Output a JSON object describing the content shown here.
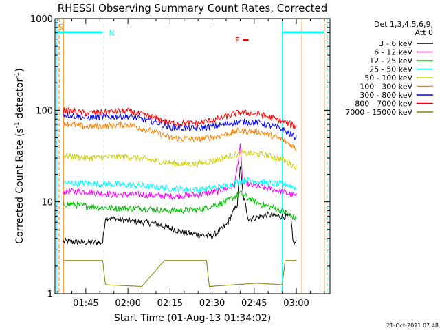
{
  "chart_data": {
    "type": "line",
    "title": "RHESSI Observing Summary Count Rates, Corrected",
    "xlabel": "Start Time (01-Aug-13 01:34:02)",
    "ylabel": "Corrected Count Rate (s⁻¹ detector⁻¹)",
    "ylabel_parts": {
      "a": "Corrected Count Rate (s",
      "b": "-1",
      "c": " detector",
      "d": "-1",
      "e": ")"
    },
    "xlim": [
      "01:34",
      "03:12"
    ],
    "ylim": [
      1,
      1000
    ],
    "yscale": "log",
    "xticks": [
      "01:45",
      "02:00",
      "02:15",
      "02:30",
      "02:45",
      "03:00"
    ],
    "yticks": [
      "1",
      "10",
      "100",
      "1000"
    ],
    "legend_position": "top-right",
    "legend_header": [
      "Det 1,3,4,5,6,9,",
      "Att 0"
    ],
    "series": [
      {
        "name": "3 - 6 keV",
        "color": "#000000",
        "points": [
          [
            "01:37",
            3.7
          ],
          [
            "01:45",
            3.6
          ],
          [
            "01:51",
            3.6
          ],
          [
            "01:52",
            6.8
          ],
          [
            "02:00",
            6.2
          ],
          [
            "02:10",
            5.8
          ],
          [
            "02:20",
            4.6
          ],
          [
            "02:30",
            4.2
          ],
          [
            "02:35",
            5.5
          ],
          [
            "02:39",
            9.5
          ],
          [
            "02:40",
            25
          ],
          [
            "02:41",
            12
          ],
          [
            "02:43",
            6.5
          ],
          [
            "02:50",
            7.2
          ],
          [
            "02:58",
            6.8
          ],
          [
            "02:59",
            3.5
          ],
          [
            "03:00",
            3.6
          ]
        ]
      },
      {
        "name": "6 - 12 keV",
        "color": "#ff00ff",
        "points": [
          [
            "01:37",
            13
          ],
          [
            "01:45",
            13
          ],
          [
            "01:55",
            12
          ],
          [
            "02:05",
            12
          ],
          [
            "02:15",
            11.5
          ],
          [
            "02:25",
            12
          ],
          [
            "02:32",
            13
          ],
          [
            "02:38",
            15
          ],
          [
            "02:40",
            40
          ],
          [
            "02:41",
            16
          ],
          [
            "02:45",
            15
          ],
          [
            "02:55",
            13
          ],
          [
            "03:00",
            11.5
          ]
        ]
      },
      {
        "name": "12 - 25 keV",
        "color": "#00c000",
        "points": [
          [
            "01:37",
            9.5
          ],
          [
            "01:45",
            9
          ],
          [
            "01:55",
            8.5
          ],
          [
            "02:05",
            8.5
          ],
          [
            "02:15",
            8
          ],
          [
            "02:25",
            8.2
          ],
          [
            "02:35",
            10
          ],
          [
            "02:40",
            12.5
          ],
          [
            "02:45",
            10
          ],
          [
            "02:55",
            8
          ],
          [
            "03:00",
            6.5
          ]
        ]
      },
      {
        "name": "25 - 50 keV",
        "color": "#00ffff",
        "points": [
          [
            "01:37",
            16
          ],
          [
            "01:45",
            16
          ],
          [
            "01:55",
            15.5
          ],
          [
            "02:05",
            15
          ],
          [
            "02:15",
            14
          ],
          [
            "02:25",
            13.5
          ],
          [
            "02:35",
            15
          ],
          [
            "02:42",
            17.5
          ],
          [
            "02:50",
            16
          ],
          [
            "02:57",
            15.5
          ],
          [
            "03:00",
            14
          ]
        ]
      },
      {
        "name": "50 - 100 keV",
        "color": "#d0d000",
        "points": [
          [
            "01:37",
            32
          ],
          [
            "01:45",
            30
          ],
          [
            "01:55",
            31
          ],
          [
            "02:00",
            31
          ],
          [
            "02:10",
            28
          ],
          [
            "02:18",
            26
          ],
          [
            "02:25",
            26
          ],
          [
            "02:32",
            29
          ],
          [
            "02:40",
            34
          ],
          [
            "02:48",
            33
          ],
          [
            "02:55",
            29
          ],
          [
            "03:00",
            24
          ]
        ]
      },
      {
        "name": "100 - 300 keV",
        "color": "#ff8000",
        "points": [
          [
            "01:37",
            72
          ],
          [
            "01:45",
            66
          ],
          [
            "01:55",
            68
          ],
          [
            "02:00",
            70
          ],
          [
            "02:10",
            57
          ],
          [
            "02:15",
            50
          ],
          [
            "02:25",
            48
          ],
          [
            "02:32",
            52
          ],
          [
            "02:40",
            60
          ],
          [
            "02:47",
            58
          ],
          [
            "02:55",
            48
          ],
          [
            "03:00",
            38
          ]
        ]
      },
      {
        "name": "300 - 800 keV",
        "color": "#0000ff",
        "points": [
          [
            "01:37",
            90
          ],
          [
            "01:45",
            83
          ],
          [
            "01:55",
            85
          ],
          [
            "02:00",
            86
          ],
          [
            "02:10",
            74
          ],
          [
            "02:15",
            65
          ],
          [
            "02:25",
            63
          ],
          [
            "02:32",
            68
          ],
          [
            "02:40",
            75
          ],
          [
            "02:47",
            73
          ],
          [
            "02:55",
            62
          ],
          [
            "03:00",
            50
          ]
        ]
      },
      {
        "name": "800 - 7000 keV",
        "color": "#ff0000",
        "points": [
          [
            "01:37",
            100
          ],
          [
            "01:45",
            93
          ],
          [
            "01:55",
            97
          ],
          [
            "02:00",
            98
          ],
          [
            "02:10",
            82
          ],
          [
            "02:15",
            72
          ],
          [
            "02:25",
            72
          ],
          [
            "02:32",
            80
          ],
          [
            "02:40",
            95
          ],
          [
            "02:47",
            90
          ],
          [
            "02:55",
            76
          ],
          [
            "03:00",
            66
          ]
        ]
      },
      {
        "name": "7000 - 15000 keV",
        "color": "#808000",
        "points": [
          [
            "01:37",
            2.3
          ],
          [
            "01:51",
            2.3
          ],
          [
            "01:52",
            1.25
          ],
          [
            "02:05",
            1.2
          ],
          [
            "02:13",
            2.3
          ],
          [
            "02:28",
            2.3
          ],
          [
            "02:29",
            1.2
          ],
          [
            "02:46",
            1.3
          ],
          [
            "02:55",
            1.25
          ],
          [
            "02:56",
            2.3
          ],
          [
            "03:00",
            2.3
          ]
        ]
      }
    ],
    "flags": [
      {
        "label": "S",
        "color": "#ff8000",
        "bar": [
          [
            "01:34",
            "01:37"
          ]
        ],
        "label_time": "01:34"
      },
      {
        "label": "N",
        "color": "#00ffff",
        "bar": [
          [
            "01:34",
            "01:51"
          ],
          [
            "02:55",
            "03:10"
          ]
        ],
        "label_time": "01:52"
      },
      {
        "label": "F",
        "color": "#ff0000",
        "bar": [
          [
            "02:41",
            "02:43"
          ]
        ],
        "label_time": "02:37"
      }
    ],
    "vlines": [
      {
        "time": "01:34:30",
        "color": "#00ffff",
        "style": "solid"
      },
      {
        "time": "01:35:30",
        "color": "#ff8000",
        "style": "dashed"
      },
      {
        "time": "01:37",
        "color": "#ff8000",
        "style": "solid"
      },
      {
        "time": "01:51:30",
        "color": "#00ffff",
        "style": "dashed"
      },
      {
        "time": "02:55",
        "color": "#00ffff",
        "style": "solid"
      },
      {
        "time": "03:02",
        "color": "#ff8000",
        "style": "solid"
      },
      {
        "time": "03:10",
        "color": "#ff8000",
        "style": "solid"
      },
      {
        "time": "03:11",
        "color": "#00ffff",
        "style": "dashed"
      }
    ]
  },
  "footer": {
    "timestamp": "21-Oct-2021 07:48"
  }
}
